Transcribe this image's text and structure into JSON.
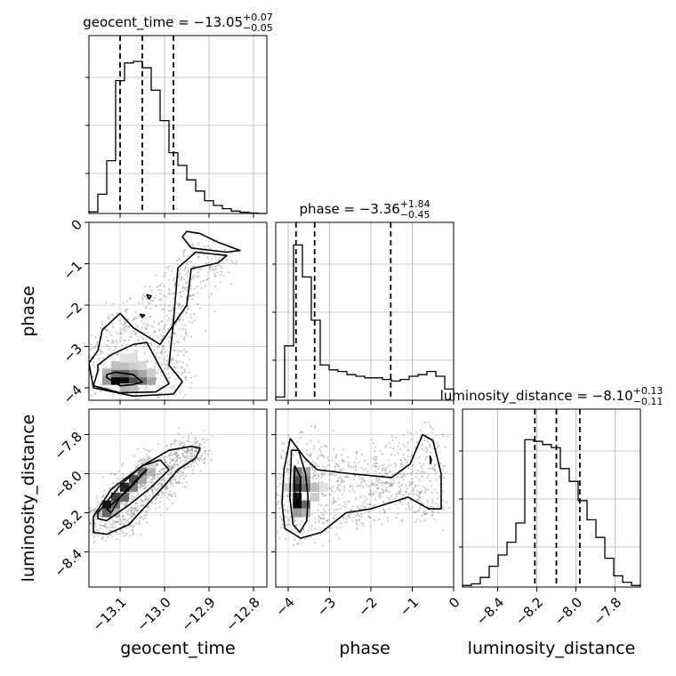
{
  "chart_data": {
    "type": "corner",
    "parameters": [
      "geocent_time",
      "phase",
      "luminosity_distance"
    ],
    "titles": [
      {
        "name": "geocent_time",
        "median": "13.05",
        "plus": "+0.07",
        "minus": "−0.05"
      },
      {
        "name": "phase",
        "median": "3.36",
        "plus": "+1.84",
        "minus": "−0.45"
      },
      {
        "name": "luminosity_distance",
        "median": "8.10",
        "plus": "+0.13",
        "minus": "−0.11"
      }
    ],
    "title_prefix": " = −",
    "axes": {
      "geocent_time": {
        "range": [
          -13.17,
          -12.77
        ],
        "ticks": [
          -13.1,
          -13.0,
          -12.9,
          -12.8
        ],
        "tick_labels": [
          "−13.1",
          "−13.0",
          "−12.9",
          "−12.8"
        ],
        "quantiles": [
          -13.1,
          -13.05,
          -12.98
        ]
      },
      "phase": {
        "range": [
          -4.3,
          0.0
        ],
        "ticks": [
          -4,
          -3,
          -2,
          -1,
          0
        ],
        "tick_labels": [
          "−4",
          "−3",
          "−2",
          "−1",
          "0"
        ],
        "quantiles": [
          -3.81,
          -3.36,
          -1.52
        ]
      },
      "luminosity_distance": {
        "range": [
          -8.58,
          -7.67
        ],
        "ticks": [
          -8.4,
          -8.2,
          -8.0,
          -7.8
        ],
        "tick_labels": [
          "−8.4",
          "−8.2",
          "−8.0",
          "−7.8"
        ],
        "quantiles": [
          -8.21,
          -8.1,
          -7.98
        ]
      }
    },
    "histograms": {
      "geocent_time": {
        "edges_from": -13.17,
        "bin_width": 0.02,
        "counts": [
          0.01,
          0.12,
          0.33,
          0.83,
          0.94,
          0.95,
          0.91,
          0.77,
          0.58,
          0.38,
          0.3,
          0.21,
          0.14,
          0.08,
          0.05,
          0.03,
          0.015,
          0.008,
          0.003,
          0.0
        ]
      },
      "phase": {
        "edges_from": -4.3,
        "bin_width": 0.215,
        "counts": [
          0.02,
          0.34,
          0.97,
          0.77,
          0.5,
          0.22,
          0.19,
          0.18,
          0.16,
          0.15,
          0.14,
          0.14,
          0.13,
          0.12,
          0.13,
          0.15,
          0.16,
          0.18,
          0.15,
          0.07
        ]
      },
      "luminosity_distance": {
        "edges_from": -8.58,
        "bin_width": 0.0455,
        "counts": [
          0.01,
          0.02,
          0.06,
          0.13,
          0.2,
          0.28,
          0.4,
          0.92,
          0.91,
          0.89,
          0.87,
          0.74,
          0.66,
          0.54,
          0.42,
          0.31,
          0.18,
          0.07,
          0.03,
          0.01
        ]
      }
    },
    "contours": {
      "geocent_time_vs_phase": [
        [
          [
            -13.13,
            -3.75
          ],
          [
            -13.1,
            -3.95
          ],
          [
            -13.07,
            -3.92
          ],
          [
            -13.05,
            -3.86
          ],
          [
            -13.07,
            -3.68
          ],
          [
            -13.11,
            -3.62
          ],
          [
            -13.13,
            -3.68
          ]
        ],
        [
          [
            -13.15,
            -3.6
          ],
          [
            -13.16,
            -3.95
          ],
          [
            -13.1,
            -4.12
          ],
          [
            -13.02,
            -4.1
          ],
          [
            -12.99,
            -3.9
          ],
          [
            -13.02,
            -3.3
          ],
          [
            -13.04,
            -2.9
          ],
          [
            -13.07,
            -2.95
          ],
          [
            -13.12,
            -3.2
          ],
          [
            -13.15,
            -3.45
          ]
        ],
        [
          [
            -13.17,
            -3.4
          ],
          [
            -13.16,
            -4.0
          ],
          [
            -13.07,
            -4.2
          ],
          [
            -12.98,
            -4.15
          ],
          [
            -12.96,
            -3.85
          ],
          [
            -12.99,
            -3.45
          ],
          [
            -12.98,
            -2.4
          ],
          [
            -12.97,
            -1.1
          ],
          [
            -12.93,
            -0.72
          ],
          [
            -12.86,
            -0.8
          ],
          [
            -12.88,
            -0.98
          ],
          [
            -12.94,
            -1.12
          ],
          [
            -12.95,
            -2.0
          ],
          [
            -13.01,
            -2.95
          ],
          [
            -13.07,
            -2.55
          ],
          [
            -13.1,
            -2.2
          ],
          [
            -13.14,
            -2.6
          ],
          [
            -13.15,
            -3.1
          ]
        ],
        [
          [
            -12.96,
            -0.35
          ],
          [
            -12.94,
            -0.62
          ],
          [
            -12.86,
            -0.72
          ],
          [
            -12.83,
            -0.68
          ],
          [
            -12.88,
            -0.48
          ],
          [
            -12.92,
            -0.27
          ],
          [
            -12.95,
            -0.22
          ]
        ],
        [
          [
            -13.04,
            -1.75
          ],
          [
            -13.035,
            -1.85
          ],
          [
            -13.03,
            -1.78
          ]
        ],
        [
          [
            -13.055,
            -2.22
          ],
          [
            -13.05,
            -2.3
          ],
          [
            -13.045,
            -2.24
          ]
        ]
      ],
      "geocent_time_vs_luminosity_distance": [
        [
          [
            -13.13,
            -8.18
          ],
          [
            -13.08,
            -8.08
          ],
          [
            -13.04,
            -7.98
          ],
          [
            -13.05,
            -8.0
          ],
          [
            -13.1,
            -8.12
          ],
          [
            -13.12,
            -8.2
          ]
        ],
        [
          [
            -13.15,
            -8.2
          ],
          [
            -13.1,
            -8.06
          ],
          [
            -13.05,
            -7.96
          ],
          [
            -13.01,
            -7.93
          ],
          [
            -12.99,
            -7.98
          ],
          [
            -13.03,
            -8.07
          ],
          [
            -13.08,
            -8.16
          ],
          [
            -13.13,
            -8.24
          ],
          [
            -13.15,
            -8.23
          ]
        ],
        [
          [
            -13.16,
            -8.22
          ],
          [
            -13.12,
            -8.08
          ],
          [
            -13.05,
            -7.96
          ],
          [
            -12.99,
            -7.88
          ],
          [
            -12.94,
            -7.86
          ],
          [
            -12.92,
            -7.87
          ],
          [
            -12.93,
            -7.92
          ],
          [
            -12.97,
            -7.98
          ],
          [
            -13.0,
            -8.06
          ],
          [
            -13.04,
            -8.16
          ],
          [
            -13.08,
            -8.26
          ],
          [
            -13.13,
            -8.31
          ],
          [
            -13.16,
            -8.3
          ]
        ]
      ],
      "phase_vs_luminosity_distance": [
        [
          [
            -3.84,
            -7.96
          ],
          [
            -3.7,
            -8.02
          ],
          [
            -3.72,
            -8.12
          ],
          [
            -3.76,
            -8.16
          ],
          [
            -3.86,
            -8.08
          ]
        ],
        [
          [
            -3.92,
            -7.88
          ],
          [
            -3.75,
            -7.88
          ],
          [
            -3.58,
            -8.0
          ],
          [
            -3.52,
            -8.12
          ],
          [
            -3.55,
            -8.24
          ],
          [
            -3.72,
            -8.3
          ],
          [
            -3.88,
            -8.26
          ],
          [
            -3.96,
            -8.12
          ]
        ],
        [
          [
            -4.1,
            -7.98
          ],
          [
            -3.95,
            -7.82
          ],
          [
            -3.6,
            -7.92
          ],
          [
            -3.3,
            -7.98
          ],
          [
            -2.5,
            -8.0
          ],
          [
            -1.5,
            -8.02
          ],
          [
            -1.05,
            -7.95
          ],
          [
            -0.75,
            -7.8
          ],
          [
            -0.5,
            -7.83
          ],
          [
            -0.3,
            -8.0
          ],
          [
            -0.3,
            -8.18
          ],
          [
            -0.6,
            -8.18
          ],
          [
            -1.1,
            -8.12
          ],
          [
            -2.0,
            -8.18
          ],
          [
            -2.6,
            -8.2
          ],
          [
            -3.2,
            -8.3
          ],
          [
            -3.7,
            -8.33
          ],
          [
            -4.08,
            -8.28
          ],
          [
            -4.15,
            -8.15
          ]
        ],
        [
          [
            -0.57,
            -7.91
          ],
          [
            -0.54,
            -7.93
          ],
          [
            -0.56,
            -7.95
          ]
        ]
      ]
    },
    "density_cells": {
      "geocent_time_vs_phase": [
        [
          -13.11,
          -3.82,
          1.0
        ],
        [
          -13.09,
          -3.82,
          0.95
        ],
        [
          -13.07,
          -3.82,
          0.7
        ],
        [
          -13.05,
          -3.82,
          0.55
        ],
        [
          -13.03,
          -3.82,
          0.35
        ],
        [
          -13.11,
          -3.64,
          0.55
        ],
        [
          -13.09,
          -3.64,
          0.6
        ],
        [
          -13.07,
          -3.64,
          0.45
        ],
        [
          -13.05,
          -3.64,
          0.35
        ],
        [
          -13.13,
          -3.64,
          0.3
        ],
        [
          -13.11,
          -3.46,
          0.25
        ],
        [
          -13.09,
          -3.46,
          0.25
        ],
        [
          -13.07,
          -3.46,
          0.2
        ],
        [
          -13.05,
          -3.46,
          0.15
        ],
        [
          -13.13,
          -3.82,
          0.4
        ],
        [
          -13.09,
          -4.0,
          0.3
        ],
        [
          -13.07,
          -4.0,
          0.25
        ],
        [
          -13.03,
          -3.64,
          0.2
        ],
        [
          -13.07,
          -3.28,
          0.12
        ],
        [
          -13.09,
          -3.28,
          0.12
        ]
      ],
      "geocent_time_vs_luminosity_distance": [
        [
          -13.13,
          -8.16,
          0.9
        ],
        [
          -13.11,
          -8.12,
          0.75
        ],
        [
          -13.09,
          -8.07,
          0.85
        ],
        [
          -13.07,
          -8.03,
          0.7
        ],
        [
          -13.05,
          -7.99,
          0.55
        ],
        [
          -13.13,
          -8.2,
          0.6
        ],
        [
          -13.11,
          -8.16,
          0.55
        ],
        [
          -13.09,
          -8.12,
          0.6
        ],
        [
          -13.07,
          -8.07,
          0.5
        ],
        [
          -13.11,
          -8.2,
          0.3
        ],
        [
          -13.05,
          -8.03,
          0.35
        ],
        [
          -13.03,
          -7.99,
          0.3
        ],
        [
          -13.15,
          -8.2,
          0.25
        ],
        [
          -13.03,
          -7.95,
          0.15
        ]
      ],
      "phase_vs_luminosity_distance": [
        [
          -3.78,
          -8.16,
          0.95
        ],
        [
          -3.78,
          -8.12,
          0.9
        ],
        [
          -3.78,
          -8.07,
          0.85
        ],
        [
          -3.78,
          -8.03,
          0.7
        ],
        [
          -3.57,
          -8.16,
          0.6
        ],
        [
          -3.57,
          -8.07,
          0.55
        ],
        [
          -3.57,
          -8.03,
          0.45
        ],
        [
          -3.78,
          -7.99,
          0.5
        ],
        [
          -3.57,
          -7.99,
          0.35
        ],
        [
          -3.78,
          -8.2,
          0.4
        ],
        [
          -3.57,
          -8.2,
          0.3
        ],
        [
          -3.35,
          -8.07,
          0.25
        ],
        [
          -3.35,
          -8.12,
          0.2
        ],
        [
          -3.99,
          -8.07,
          0.2
        ],
        [
          -3.14,
          -8.07,
          0.12
        ]
      ]
    },
    "scatter_clouds": {
      "geocent_time_vs_phase": {
        "n": 700,
        "seed": 7
      },
      "geocent_time_vs_luminosity_distance": {
        "n": 900,
        "seed": 13
      },
      "phase_vs_luminosity_distance": {
        "n": 900,
        "seed": 21
      }
    },
    "grid": true
  }
}
